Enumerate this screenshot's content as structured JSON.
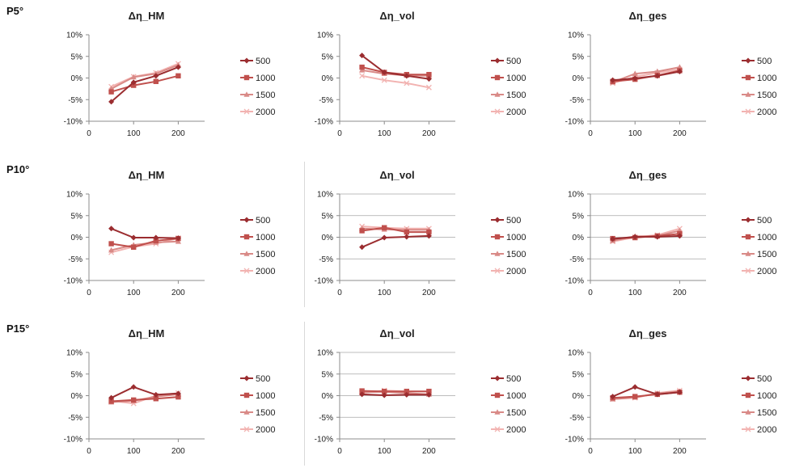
{
  "row_labels": [
    "P5°",
    "P10°",
    "P15°"
  ],
  "legend_labels": [
    "500",
    "1000",
    "1500",
    "2000"
  ],
  "series_styles": [
    {
      "color": "#9b2d30",
      "marker": "diamond"
    },
    {
      "color": "#c0504d",
      "marker": "square"
    },
    {
      "color": "#d98a87",
      "marker": "triangle"
    },
    {
      "color": "#f2b3b1",
      "marker": "x"
    }
  ],
  "chart_data": [
    {
      "type": "line",
      "title": "Δη_HM",
      "row": 0,
      "col": 0,
      "x": [
        50,
        100,
        150,
        200
      ],
      "xticks": [
        0,
        100,
        200
      ],
      "ylim": [
        -0.1,
        0.1
      ],
      "yticks": [
        "10%",
        "5%",
        "0%",
        "-5%",
        "-10%"
      ],
      "grid": false,
      "series": [
        {
          "name": "500",
          "values": [
            -0.055,
            -0.01,
            0.005,
            0.025
          ]
        },
        {
          "name": "1000",
          "values": [
            -0.032,
            -0.017,
            -0.008,
            0.005
          ]
        },
        {
          "name": "1500",
          "values": [
            -0.025,
            0.002,
            0.01,
            0.03
          ]
        },
        {
          "name": "2000",
          "values": [
            -0.02,
            0.003,
            0.012,
            0.033
          ]
        }
      ]
    },
    {
      "type": "line",
      "title": "Δη_vol",
      "row": 0,
      "col": 1,
      "x": [
        50,
        100,
        150,
        200
      ],
      "xticks": [
        0,
        100,
        200
      ],
      "ylim": [
        -0.1,
        0.1
      ],
      "yticks": [
        "10%",
        "5%",
        "0%",
        "-5%",
        "-10%"
      ],
      "grid": false,
      "series": [
        {
          "name": "500",
          "values": [
            0.052,
            0.013,
            0.005,
            -0.002
          ]
        },
        {
          "name": "1000",
          "values": [
            0.025,
            0.013,
            0.008,
            0.008
          ]
        },
        {
          "name": "1500",
          "values": [
            0.018,
            0.01,
            0.006,
            0.005
          ]
        },
        {
          "name": "2000",
          "values": [
            0.005,
            -0.005,
            -0.012,
            -0.022
          ]
        }
      ]
    },
    {
      "type": "line",
      "title": "Δη_ges",
      "row": 0,
      "col": 2,
      "x": [
        50,
        100,
        150,
        200
      ],
      "xticks": [
        0,
        100,
        200
      ],
      "ylim": [
        -0.1,
        0.1
      ],
      "yticks": [
        "10%",
        "5%",
        "0%",
        "-5%",
        "-10%"
      ],
      "grid": false,
      "series": [
        {
          "name": "500",
          "values": [
            -0.005,
            -0.001,
            0.005,
            0.015
          ]
        },
        {
          "name": "1000",
          "values": [
            -0.008,
            -0.003,
            0.006,
            0.017
          ]
        },
        {
          "name": "1500",
          "values": [
            -0.01,
            0.01,
            0.015,
            0.025
          ]
        },
        {
          "name": "2000",
          "values": [
            -0.012,
            0.003,
            0.012,
            0.02
          ]
        }
      ]
    },
    {
      "type": "line",
      "title": "Δη_HM",
      "row": 1,
      "col": 0,
      "x": [
        50,
        100,
        150,
        200
      ],
      "xticks": [
        0,
        100,
        200
      ],
      "ylim": [
        -0.1,
        0.1
      ],
      "yticks": [
        "10%",
        "5%",
        "0%",
        "-5%",
        "-10%"
      ],
      "grid": false,
      "series": [
        {
          "name": "500",
          "values": [
            0.02,
            -0.001,
            -0.001,
            -0.002
          ]
        },
        {
          "name": "1000",
          "values": [
            -0.015,
            -0.023,
            -0.008,
            -0.003
          ]
        },
        {
          "name": "1500",
          "values": [
            -0.03,
            -0.018,
            -0.012,
            -0.01
          ]
        },
        {
          "name": "2000",
          "values": [
            -0.035,
            -0.022,
            -0.015,
            -0.002
          ]
        }
      ]
    },
    {
      "type": "line",
      "title": "Δη_vol",
      "row": 1,
      "col": 1,
      "x": [
        50,
        100,
        150,
        200
      ],
      "xticks": [
        0,
        100,
        200
      ],
      "ylim": [
        -0.1,
        0.1
      ],
      "yticks": [
        "10%",
        "5%",
        "0%",
        "-5%",
        "-10%"
      ],
      "grid": true,
      "series": [
        {
          "name": "500",
          "values": [
            -0.023,
            -0.001,
            0.001,
            0.003
          ]
        },
        {
          "name": "1000",
          "values": [
            0.015,
            0.022,
            0.012,
            0.012
          ]
        },
        {
          "name": "1500",
          "values": [
            0.02,
            0.018,
            0.017,
            0.017
          ]
        },
        {
          "name": "2000",
          "values": [
            0.025,
            0.022,
            0.02,
            0.02
          ]
        }
      ]
    },
    {
      "type": "line",
      "title": "Δη_ges",
      "row": 1,
      "col": 2,
      "x": [
        50,
        100,
        150,
        200
      ],
      "xticks": [
        0,
        100,
        200
      ],
      "ylim": [
        -0.1,
        0.1
      ],
      "yticks": [
        "10%",
        "5%",
        "0%",
        "-5%",
        "-10%"
      ],
      "grid": true,
      "series": [
        {
          "name": "500",
          "values": [
            -0.004,
            0.001,
            0.001,
            0.003
          ]
        },
        {
          "name": "1000",
          "values": [
            -0.003,
            -0.001,
            0.003,
            0.008
          ]
        },
        {
          "name": "1500",
          "values": [
            -0.008,
            0.002,
            0.003,
            0.015
          ]
        },
        {
          "name": "2000",
          "values": [
            -0.01,
            0.0,
            0.005,
            0.02
          ]
        }
      ]
    },
    {
      "type": "line",
      "title": "Δη_HM",
      "row": 2,
      "col": 0,
      "x": [
        50,
        100,
        150,
        200
      ],
      "xticks": [
        0,
        100,
        200
      ],
      "ylim": [
        -0.1,
        0.1
      ],
      "yticks": [
        "10%",
        "5%",
        "0%",
        "-5%",
        "-10%"
      ],
      "grid": false,
      "series": [
        {
          "name": "500",
          "values": [
            -0.005,
            0.02,
            0.002,
            0.005
          ]
        },
        {
          "name": "1000",
          "values": [
            -0.013,
            -0.01,
            -0.007,
            -0.003
          ]
        },
        {
          "name": "1500",
          "values": [
            -0.015,
            -0.012,
            -0.002,
            0.003
          ]
        },
        {
          "name": "2000",
          "values": [
            -0.012,
            -0.018,
            0.0,
            0.006
          ]
        }
      ]
    },
    {
      "type": "line",
      "title": "Δη_vol",
      "row": 2,
      "col": 1,
      "x": [
        50,
        100,
        150,
        200
      ],
      "xticks": [
        0,
        100,
        200
      ],
      "ylim": [
        -0.1,
        0.1
      ],
      "yticks": [
        "10%",
        "5%",
        "0%",
        "-5%",
        "-10%"
      ],
      "grid": true,
      "series": [
        {
          "name": "500",
          "values": [
            0.003,
            0.001,
            0.002,
            0.002
          ]
        },
        {
          "name": "1000",
          "values": [
            0.011,
            0.01,
            0.01,
            0.01
          ]
        },
        {
          "name": "1500",
          "values": [
            0.008,
            0.009,
            0.006,
            0.003
          ]
        },
        {
          "name": "2000",
          "values": [
            0.006,
            0.012,
            0.01,
            0.01
          ]
        }
      ]
    },
    {
      "type": "line",
      "title": "Δη_ges",
      "row": 2,
      "col": 2,
      "x": [
        50,
        100,
        150,
        200
      ],
      "xticks": [
        0,
        100,
        200
      ],
      "ylim": [
        -0.1,
        0.1
      ],
      "yticks": [
        "10%",
        "5%",
        "0%",
        "-5%",
        "-10%"
      ],
      "grid": false,
      "series": [
        {
          "name": "500",
          "values": [
            -0.002,
            0.02,
            0.003,
            0.008
          ]
        },
        {
          "name": "1000",
          "values": [
            -0.005,
            -0.002,
            0.003,
            0.008
          ]
        },
        {
          "name": "1500",
          "values": [
            -0.008,
            -0.004,
            0.005,
            0.01
          ]
        },
        {
          "name": "2000",
          "values": [
            -0.008,
            -0.005,
            0.006,
            0.012
          ]
        }
      ]
    }
  ]
}
